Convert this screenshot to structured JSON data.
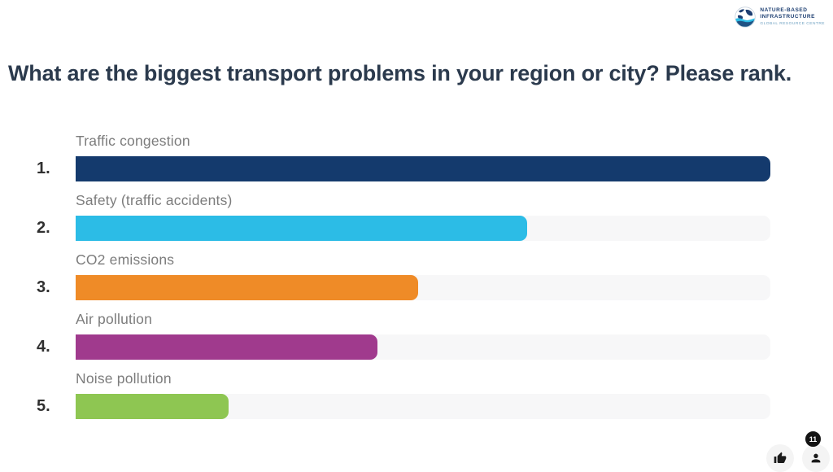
{
  "logo": {
    "name_line1": "NATURE-BASED",
    "name_line2": "INFRASTRUCTURE",
    "tagline": "GLOBAL RESOURCE CENTRE"
  },
  "title": "What are the biggest transport problems in your region or city? Please rank.",
  "chart_data": {
    "type": "bar",
    "orientation": "horizontal",
    "title": "What are the biggest transport problems in your region or city? Please rank.",
    "ranks": [
      "1.",
      "2.",
      "3.",
      "4.",
      "5."
    ],
    "categories": [
      "Traffic congestion",
      "Safety (traffic accidents)",
      "CO2 emissions",
      "Air pollution",
      "Noise pollution"
    ],
    "values_percent_of_max": [
      100,
      65,
      49.3,
      43.5,
      22
    ],
    "colors": [
      "#143a6d",
      "#2cbce6",
      "#ef8b27",
      "#a03a8d",
      "#8ec652"
    ],
    "track_color": "#f7f7f8",
    "xlabel": "",
    "ylabel": "",
    "legend": "none",
    "value_axis": "hidden"
  },
  "footer": {
    "participants_count": "11"
  }
}
